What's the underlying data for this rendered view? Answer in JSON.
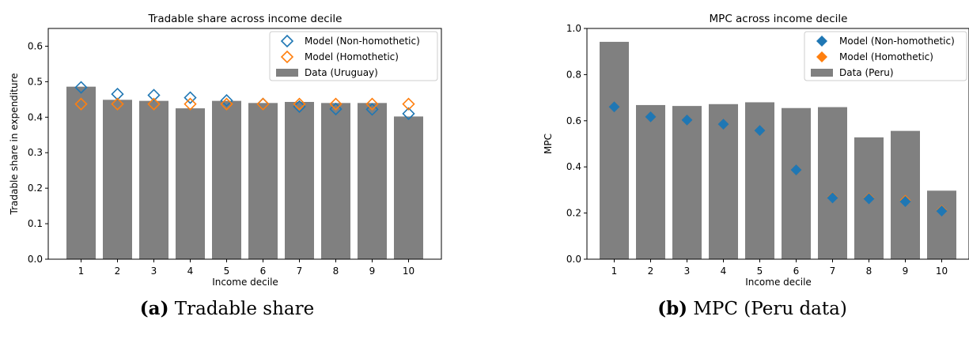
{
  "colors": {
    "bar": "#808080",
    "non_homothetic": "#1f77b4",
    "homothetic": "#ff7f0e"
  },
  "captions": [
    {
      "letter": "(a)",
      "text": "Tradable share"
    },
    {
      "letter": "(b)",
      "text": "MPC (Peru data)"
    }
  ],
  "chart_data": [
    {
      "type": "bar",
      "title": "Tradable share across income decile",
      "xlabel": "Income decile",
      "ylabel": "Tradable share in expenditure",
      "ylim": [
        0,
        0.65
      ],
      "yticks": [
        0.0,
        0.1,
        0.2,
        0.3,
        0.4,
        0.5,
        0.6
      ],
      "ytick_labels": [
        "0.0",
        "0.1",
        "0.2",
        "0.3",
        "0.4",
        "0.5",
        "0.6"
      ],
      "categories": [
        "1",
        "2",
        "3",
        "4",
        "5",
        "6",
        "7",
        "8",
        "9",
        "10"
      ],
      "legend_position": "top-right",
      "marker_style": "hollow-diamond",
      "bars": {
        "name": "Data (Uruguay)",
        "values": [
          0.486,
          0.449,
          0.446,
          0.425,
          0.446,
          0.44,
          0.443,
          0.44,
          0.44,
          0.402
        ]
      },
      "series": [
        {
          "name": "Model (Non-homothetic)",
          "color_key": "non_homothetic",
          "values": [
            0.484,
            0.465,
            0.462,
            0.455,
            0.447,
            0.437,
            0.43,
            0.423,
            0.422,
            0.41
          ]
        },
        {
          "name": "Model (Homothetic)",
          "color_key": "homothetic",
          "values": [
            0.437,
            0.437,
            0.437,
            0.437,
            0.437,
            0.437,
            0.437,
            0.437,
            0.437,
            0.437
          ]
        }
      ]
    },
    {
      "type": "bar",
      "title": "MPC across income decile",
      "xlabel": "Income decile",
      "ylabel": "MPC",
      "ylim": [
        0,
        1.0
      ],
      "yticks": [
        0.0,
        0.2,
        0.4,
        0.6,
        0.8,
        1.0
      ],
      "ytick_labels": [
        "0.0",
        "0.2",
        "0.4",
        "0.6",
        "0.8",
        "1.0"
      ],
      "categories": [
        "1",
        "2",
        "3",
        "4",
        "5",
        "6",
        "7",
        "8",
        "9",
        "10"
      ],
      "legend_position": "top-right",
      "marker_style": "filled-diamond",
      "bars": {
        "name": "Data (Peru)",
        "values": [
          0.942,
          0.668,
          0.664,
          0.672,
          0.68,
          0.655,
          0.659,
          0.528,
          0.556,
          0.297
        ]
      },
      "series": [
        {
          "name": "Model (Homothetic)",
          "color_key": "homothetic",
          "values": [
            0.66,
            0.617,
            0.603,
            0.585,
            0.558,
            0.387,
            0.268,
            0.265,
            0.255,
            0.212
          ]
        },
        {
          "name": "Model (Non-homothetic)",
          "color_key": "non_homothetic",
          "values": [
            0.66,
            0.617,
            0.603,
            0.585,
            0.558,
            0.387,
            0.266,
            0.262,
            0.25,
            0.209
          ]
        }
      ],
      "legend_order": [
        "Model (Non-homothetic)",
        "Model (Homothetic)",
        "Data (Peru)"
      ]
    }
  ]
}
